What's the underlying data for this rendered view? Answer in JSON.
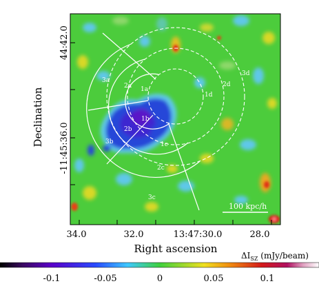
{
  "figure": {
    "x_axis_label": "Right ascension",
    "y_axis_label": "Declination",
    "x_ticks": [
      "34.0",
      "32.0",
      "13:47:30.0",
      "28.0"
    ],
    "y_ticks": [
      "44:42.0",
      "-11:45:36.0"
    ],
    "scale_bar_label": "100 kpc/h",
    "region_labels": [
      "1a",
      "1b",
      "1c",
      "1d",
      "2a",
      "2b",
      "2c",
      "2d",
      "3a",
      "3b",
      "3c",
      "3d"
    ]
  },
  "colorbar": {
    "title": "ΔI",
    "title_sub": "SZ",
    "title_unit": " (mJy/beam)",
    "ticks": [
      "-0.1",
      "-0.05",
      "0",
      "0.05",
      "0.1"
    ],
    "colors": {
      "black": "#000000",
      "violet": "#5a00c8",
      "blue": "#2a4bff",
      "cyan": "#3ec8ff",
      "green": "#3ed03e",
      "yellow": "#f0e020",
      "red": "#d41a1a",
      "white": "#ffffff"
    }
  },
  "map_colors": {
    "background_green": "#4ccc3c",
    "deep_blue": "#2846d8",
    "violet_core": "#5a14c8",
    "cyan": "#5ec8e8",
    "yellow": "#d8d828",
    "red": "#e03018"
  }
}
